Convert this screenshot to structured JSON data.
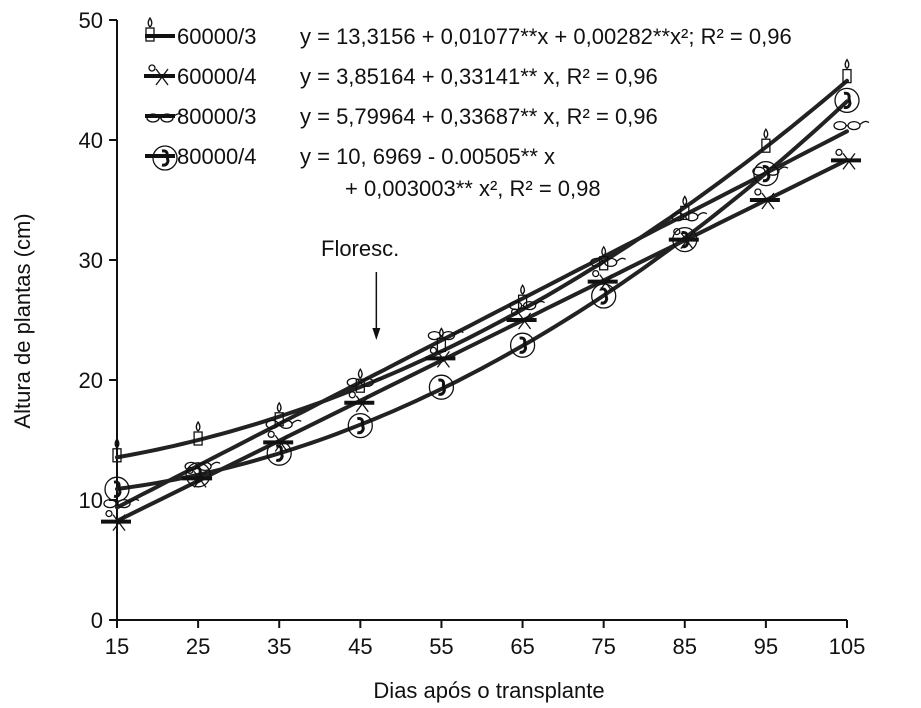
{
  "chart_data": {
    "type": "line",
    "title": "",
    "xlabel": "Dias após o transplante",
    "ylabel": "Altura de plantas (cm)",
    "xlim": [
      15,
      105
    ],
    "ylim": [
      0,
      50
    ],
    "x_ticks": [
      "15",
      "25",
      "35",
      "45",
      "55",
      "65",
      "75",
      "85",
      "95",
      "105"
    ],
    "y_ticks": [
      "0",
      "10",
      "20",
      "30",
      "40",
      "50"
    ],
    "grid": false,
    "legend_position": "top-left",
    "annotation": {
      "text": "Floresc.",
      "x": 45
    },
    "series": [
      {
        "name": "60000/3",
        "equation": "y = 13,3156 + 0,01077**x + 0,00282**x²; R² = 0,96",
        "marker": "candle-icon",
        "color": "#222222",
        "x": [
          15,
          25,
          35,
          45,
          55,
          65,
          75,
          85,
          95,
          105
        ],
        "values": [
          13.6,
          15.0,
          16.6,
          19.4,
          22.8,
          26.4,
          29.6,
          33.8,
          39.4,
          45.2
        ]
      },
      {
        "name": "60000/4",
        "equation": "y = 3,85164 + 0,33141** x, R² = 0,96",
        "marker": "scissors-icon",
        "color": "#222222",
        "x": [
          15,
          25,
          35,
          45,
          55,
          65,
          75,
          85,
          95,
          105
        ],
        "values": [
          8.2,
          11.8,
          14.8,
          18.1,
          21.8,
          25.0,
          28.2,
          31.7,
          35.0,
          38.3
        ]
      },
      {
        "name": "80000/3",
        "equation": "y = 5,79964 + 0,33687** x, R² = 0,96",
        "marker": "glasses-icon",
        "color": "#222222",
        "x": [
          15,
          25,
          35,
          45,
          55,
          65,
          75,
          85,
          95,
          105
        ],
        "values": [
          9.7,
          12.8,
          16.3,
          19.8,
          23.7,
          26.2,
          29.8,
          33.6,
          37.4,
          41.2
        ]
      },
      {
        "name": "80000/4",
        "equation": "y = 10, 6969 - 0.00505** x",
        "equation_cont": "+ 0,003003** x², R² = 0,98",
        "marker": "telephone-icon",
        "color": "#222222",
        "x": [
          15,
          25,
          35,
          45,
          55,
          65,
          75,
          85,
          95,
          105
        ],
        "values": [
          10.9,
          12.1,
          13.9,
          16.2,
          19.4,
          22.9,
          27.0,
          31.7,
          37.2,
          43.3
        ]
      }
    ]
  }
}
